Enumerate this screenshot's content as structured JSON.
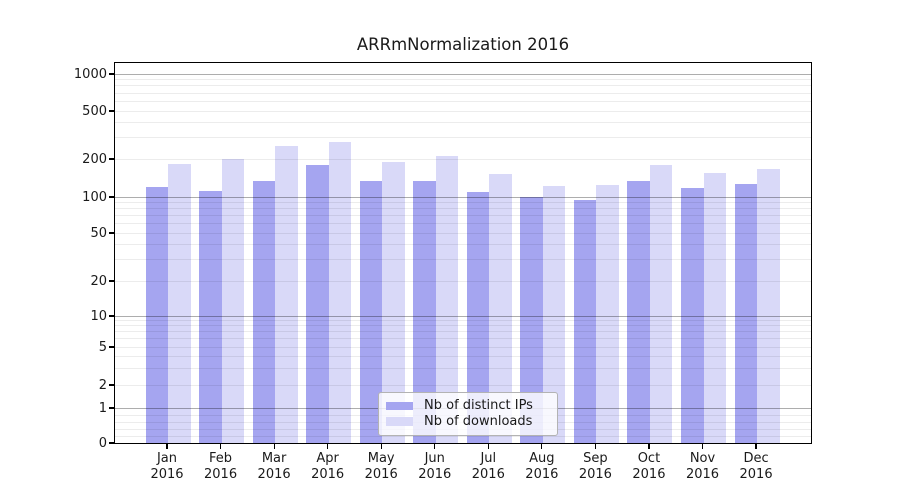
{
  "title": "ARRmNormalization 2016",
  "chart_data": {
    "type": "bar",
    "title": "ARRmNormalization 2016",
    "categories": [
      "Jan 2016",
      "Feb 2016",
      "Mar 2016",
      "Apr 2016",
      "May 2016",
      "Jun 2016",
      "Jul 2016",
      "Aug 2016",
      "Sep 2016",
      "Oct 2016",
      "Nov 2016",
      "Dec 2016"
    ],
    "x_tick_month": [
      "Jan",
      "Feb",
      "Mar",
      "Apr",
      "May",
      "Jun",
      "Jul",
      "Aug",
      "Sep",
      "Oct",
      "Nov",
      "Dec"
    ],
    "x_tick_year": "2016",
    "series": [
      {
        "name": "Nb of distinct IPs",
        "color": "#a5a5f0",
        "values": [
          120,
          112,
          135,
          180,
          135,
          135,
          110,
          100,
          95,
          135,
          118,
          127
        ]
      },
      {
        "name": "Nb of downloads",
        "color": "#d9d9f8",
        "values": [
          183,
          200,
          255,
          275,
          190,
          212,
          152,
          122,
          125,
          178,
          155,
          167
        ]
      }
    ],
    "yscale": "symlog",
    "y_ticks": [
      1000,
      500,
      200,
      100,
      50,
      20,
      10,
      5,
      2,
      1,
      0
    ],
    "ylim": [
      0,
      1000
    ],
    "grid": true,
    "legend_position": "lower-center"
  },
  "legend": {
    "items": [
      {
        "label": "Nb of distinct IPs",
        "color": "#a5a5f0"
      },
      {
        "label": "Nb of downloads",
        "color": "#d9d9f8"
      }
    ]
  },
  "colors": {
    "distinct_ips": "#a5a5f0",
    "downloads": "#d9d9f8",
    "axis": "#000000",
    "grid_major": "#aeaeae",
    "grid_minor": "#ececec",
    "background": "#ffffff"
  }
}
